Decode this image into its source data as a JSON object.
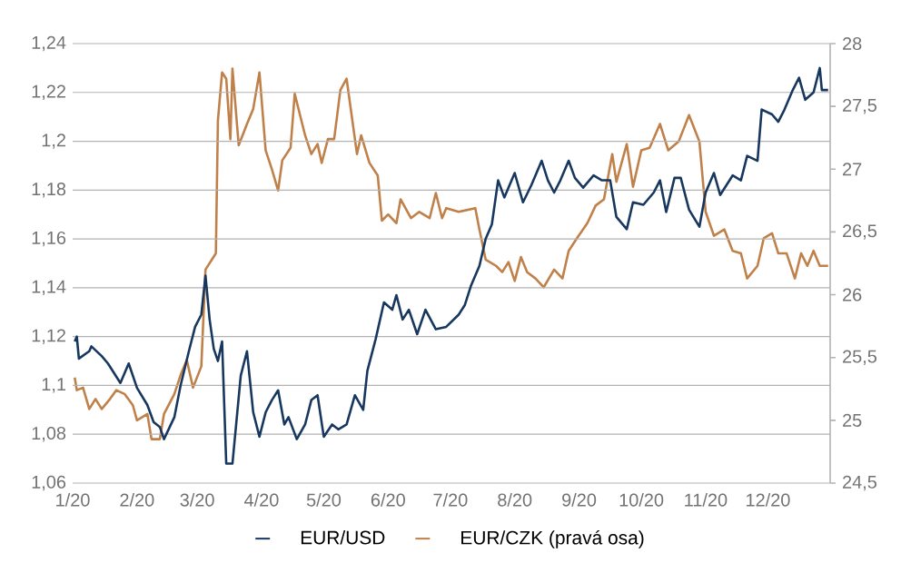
{
  "chart_data": {
    "type": "line",
    "legend": "bottom",
    "grid": "y",
    "line_style": "solid",
    "marker": "none",
    "xlim": [
      "2020-01-01",
      "2020-12-31"
    ],
    "xticks": [
      {
        "value": "2020-01-01",
        "label": "1/20"
      },
      {
        "value": "2020-02-01",
        "label": "2/20"
      },
      {
        "value": "2020-03-01",
        "label": "3/20"
      },
      {
        "value": "2020-04-01",
        "label": "4/20"
      },
      {
        "value": "2020-05-01",
        "label": "5/20"
      },
      {
        "value": "2020-06-01",
        "label": "6/20"
      },
      {
        "value": "2020-07-01",
        "label": "7/20"
      },
      {
        "value": "2020-08-01",
        "label": "8/20"
      },
      {
        "value": "2020-09-01",
        "label": "9/20"
      },
      {
        "value": "2020-10-01",
        "label": "10/20"
      },
      {
        "value": "2020-11-01",
        "label": "11/20"
      },
      {
        "value": "2020-12-01",
        "label": "12/20"
      }
    ],
    "ylim": [
      1.06,
      1.24
    ],
    "yticks": [
      {
        "value": 1.06,
        "label": "1,06"
      },
      {
        "value": 1.08,
        "label": "1,08"
      },
      {
        "value": 1.1,
        "label": "1,1"
      },
      {
        "value": 1.12,
        "label": "1,12"
      },
      {
        "value": 1.14,
        "label": "1,14"
      },
      {
        "value": 1.16,
        "label": "1,16"
      },
      {
        "value": 1.18,
        "label": "1,18"
      },
      {
        "value": 1.2,
        "label": "1,2"
      },
      {
        "value": 1.22,
        "label": "1,22"
      },
      {
        "value": 1.24,
        "label": "1,24"
      }
    ],
    "y2lim": [
      24.5,
      28
    ],
    "y2ticks": [
      {
        "value": 24.5,
        "label": "24,5"
      },
      {
        "value": 25,
        "label": "25"
      },
      {
        "value": 25.5,
        "label": "25,5"
      },
      {
        "value": 26,
        "label": "26"
      },
      {
        "value": 26.5,
        "label": "26,5"
      },
      {
        "value": 27,
        "label": "27"
      },
      {
        "value": 27.5,
        "label": "27,5"
      },
      {
        "value": 28,
        "label": "28"
      }
    ],
    "series": [
      {
        "name": "EUR/USD",
        "color": "#17375e",
        "x": [
          "2020-01-02",
          "2020-01-03",
          "2020-01-04",
          "2020-01-09",
          "2020-01-10",
          "2020-01-15",
          "2020-01-18",
          "2020-01-24",
          "2020-01-28",
          "2020-02-01",
          "2020-02-06",
          "2020-02-09",
          "2020-02-12",
          "2020-02-14",
          "2020-02-19",
          "2020-02-22",
          "2020-02-26",
          "2020-02-29",
          "2020-03-03",
          "2020-03-05",
          "2020-03-07",
          "2020-03-09",
          "2020-03-11",
          "2020-03-13",
          "2020-03-15",
          "2020-03-18",
          "2020-03-22",
          "2020-03-25",
          "2020-03-28",
          "2020-03-31",
          "2020-04-03",
          "2020-04-06",
          "2020-04-09",
          "2020-04-12",
          "2020-04-14",
          "2020-04-18",
          "2020-04-22",
          "2020-04-25",
          "2020-04-28",
          "2020-05-01",
          "2020-05-05",
          "2020-05-08",
          "2020-05-12",
          "2020-05-16",
          "2020-05-20",
          "2020-05-22",
          "2020-05-26",
          "2020-05-30",
          "2020-06-03",
          "2020-06-05",
          "2020-06-08",
          "2020-06-11",
          "2020-06-15",
          "2020-06-19",
          "2020-06-24",
          "2020-06-29",
          "2020-07-05",
          "2020-07-08",
          "2020-07-11",
          "2020-07-15",
          "2020-07-18",
          "2020-07-21",
          "2020-07-24",
          "2020-07-27",
          "2020-08-01",
          "2020-08-05",
          "2020-08-09",
          "2020-08-14",
          "2020-08-17",
          "2020-08-20",
          "2020-08-23",
          "2020-08-27",
          "2020-08-30",
          "2020-09-03",
          "2020-09-08",
          "2020-09-12",
          "2020-09-16",
          "2020-09-19",
          "2020-09-24",
          "2020-09-27",
          "2020-10-02",
          "2020-10-07",
          "2020-10-10",
          "2020-10-13",
          "2020-10-17",
          "2020-10-20",
          "2020-10-24",
          "2020-10-29",
          "2020-11-01",
          "2020-11-05",
          "2020-11-08",
          "2020-11-14",
          "2020-11-18",
          "2020-11-21",
          "2020-11-26",
          "2020-11-28",
          "2020-12-03",
          "2020-12-06",
          "2020-12-09",
          "2020-12-13",
          "2020-12-16",
          "2020-12-19",
          "2020-12-23",
          "2020-12-26",
          "2020-12-27",
          "2020-12-30"
        ],
        "values": [
          1.118,
          1.12,
          1.111,
          1.114,
          1.116,
          1.112,
          1.109,
          1.101,
          1.109,
          1.099,
          1.092,
          1.085,
          1.083,
          1.078,
          1.087,
          1.1,
          1.114,
          1.124,
          1.129,
          1.145,
          1.127,
          1.115,
          1.11,
          1.118,
          1.068,
          1.068,
          1.104,
          1.114,
          1.089,
          1.079,
          1.089,
          1.094,
          1.098,
          1.084,
          1.087,
          1.078,
          1.084,
          1.094,
          1.096,
          1.079,
          1.084,
          1.082,
          1.084,
          1.096,
          1.09,
          1.106,
          1.119,
          1.134,
          1.131,
          1.137,
          1.127,
          1.131,
          1.121,
          1.131,
          1.123,
          1.124,
          1.129,
          1.133,
          1.141,
          1.149,
          1.16,
          1.166,
          1.184,
          1.177,
          1.187,
          1.175,
          1.182,
          1.192,
          1.184,
          1.179,
          1.184,
          1.192,
          1.185,
          1.181,
          1.186,
          1.184,
          1.184,
          1.169,
          1.164,
          1.175,
          1.174,
          1.179,
          1.184,
          1.171,
          1.185,
          1.185,
          1.172,
          1.165,
          1.179,
          1.187,
          1.178,
          1.186,
          1.184,
          1.194,
          1.192,
          1.213,
          1.211,
          1.208,
          1.213,
          1.221,
          1.226,
          1.217,
          1.22,
          1.23,
          1.221,
          1.221
        ]
      },
      {
        "name": "EUR/CZK (pravá osa)",
        "color": "#c0804a",
        "axis": "y2",
        "x": [
          "2020-01-02",
          "2020-01-03",
          "2020-01-06",
          "2020-01-09",
          "2020-01-12",
          "2020-01-15",
          "2020-01-19",
          "2020-01-22",
          "2020-01-26",
          "2020-01-30",
          "2020-02-01",
          "2020-02-06",
          "2020-02-08",
          "2020-02-12",
          "2020-02-14",
          "2020-02-19",
          "2020-02-22",
          "2020-02-25",
          "2020-02-28",
          "2020-03-03",
          "2020-03-05",
          "2020-03-10",
          "2020-03-11",
          "2020-03-13",
          "2020-03-15",
          "2020-03-17",
          "2020-03-18",
          "2020-03-21",
          "2020-03-25",
          "2020-03-28",
          "2020-03-31",
          "2020-04-03",
          "2020-04-06",
          "2020-04-09",
          "2020-04-11",
          "2020-04-15",
          "2020-04-17",
          "2020-04-22",
          "2020-04-25",
          "2020-04-28",
          "2020-04-30",
          "2020-05-03",
          "2020-05-06",
          "2020-05-09",
          "2020-05-12",
          "2020-05-17",
          "2020-05-19",
          "2020-05-23",
          "2020-05-27",
          "2020-05-29",
          "2020-06-01",
          "2020-06-05",
          "2020-06-07",
          "2020-06-12",
          "2020-06-16",
          "2020-06-21",
          "2020-06-24",
          "2020-06-27",
          "2020-06-29",
          "2020-07-05",
          "2020-07-13",
          "2020-07-15",
          "2020-07-18",
          "2020-07-23",
          "2020-07-26",
          "2020-07-29",
          "2020-08-01",
          "2020-08-04",
          "2020-08-07",
          "2020-08-11",
          "2020-08-15",
          "2020-08-20",
          "2020-08-24",
          "2020-08-27",
          "2020-08-31",
          "2020-09-05",
          "2020-09-09",
          "2020-09-13",
          "2020-09-17",
          "2020-09-19",
          "2020-09-24",
          "2020-09-27",
          "2020-10-01",
          "2020-10-05",
          "2020-10-10",
          "2020-10-14",
          "2020-10-19",
          "2020-10-24",
          "2020-10-29",
          "2020-11-01",
          "2020-11-05",
          "2020-11-10",
          "2020-11-14",
          "2020-11-18",
          "2020-11-21",
          "2020-11-26",
          "2020-11-29",
          "2020-12-03",
          "2020-12-06",
          "2020-12-10",
          "2020-12-14",
          "2020-12-17",
          "2020-12-20",
          "2020-12-23",
          "2020-12-26",
          "2020-12-30"
        ],
        "values": [
          25.34,
          25.24,
          25.26,
          25.09,
          25.17,
          25.09,
          25.17,
          25.24,
          25.21,
          25.12,
          25.0,
          25.05,
          24.85,
          24.85,
          25.05,
          25.21,
          25.36,
          25.48,
          25.26,
          25.43,
          26.2,
          26.33,
          27.39,
          27.77,
          27.72,
          27.24,
          27.8,
          27.19,
          27.36,
          27.48,
          27.77,
          27.15,
          27.0,
          26.83,
          27.07,
          27.17,
          27.6,
          27.27,
          27.12,
          27.2,
          27.05,
          27.24,
          27.24,
          27.63,
          27.72,
          27.12,
          27.27,
          27.05,
          26.95,
          26.59,
          26.64,
          26.57,
          26.76,
          26.61,
          26.66,
          26.61,
          26.81,
          26.61,
          26.69,
          26.66,
          26.69,
          26.52,
          26.28,
          26.23,
          26.18,
          26.26,
          26.11,
          26.3,
          26.18,
          26.13,
          26.06,
          26.2,
          26.13,
          26.35,
          26.45,
          26.57,
          26.71,
          26.76,
          27.12,
          26.9,
          27.2,
          26.86,
          27.15,
          27.17,
          27.36,
          27.15,
          27.22,
          27.43,
          27.22,
          26.66,
          26.47,
          26.52,
          26.35,
          26.33,
          26.13,
          26.23,
          26.45,
          26.49,
          26.33,
          26.33,
          26.13,
          26.33,
          26.23,
          26.35,
          26.23,
          26.23
        ]
      }
    ]
  }
}
